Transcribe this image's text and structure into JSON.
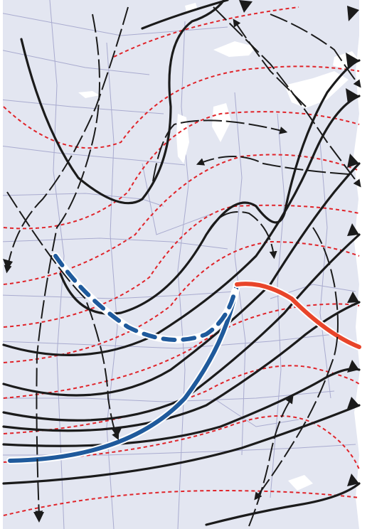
{
  "map": {
    "background_color": "#e3e6f1",
    "border_color": "#a9abcf",
    "water_color": "#ffffff",
    "isobar_color": "#1b1b1b",
    "isotherm_color": "#e0242a",
    "cold_front_color": "#1f5a9c",
    "warm_front_color": "#e8452a",
    "arrow_color": "#1b1b1b"
  }
}
